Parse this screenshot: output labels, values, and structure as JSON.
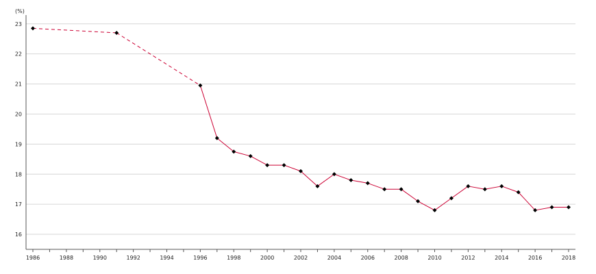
{
  "chart_data": {
    "type": "line",
    "title": "",
    "xlabel": "",
    "ylabel": "(%)",
    "xlim": [
      1986,
      2018
    ],
    "ylim": [
      15.5,
      23.2
    ],
    "x_ticks": [
      "1986",
      "1988",
      "1990",
      "1992",
      "1994",
      "1996",
      "1998",
      "2000",
      "2002",
      "2004",
      "2006",
      "2008",
      "2010",
      "2012",
      "2014",
      "2016",
      "2018"
    ],
    "y_ticks": [
      "16",
      "17",
      "18",
      "19",
      "20",
      "21",
      "22",
      "23"
    ],
    "grid": "horizontal",
    "legend": "none",
    "series": [
      {
        "color": "#cc0033",
        "marker": "diamond",
        "dashed_segments": [
          [
            1986,
            1991
          ],
          [
            1991,
            1996
          ]
        ],
        "points": [
          {
            "x": 1986,
            "y": 22.85
          },
          {
            "x": 1991,
            "y": 22.7
          },
          {
            "x": 1996,
            "y": 20.95
          },
          {
            "x": 1997,
            "y": 19.2
          },
          {
            "x": 1998,
            "y": 18.75
          },
          {
            "x": 1999,
            "y": 18.6
          },
          {
            "x": 2000,
            "y": 18.3
          },
          {
            "x": 2001,
            "y": 18.3
          },
          {
            "x": 2002,
            "y": 18.1
          },
          {
            "x": 2003,
            "y": 17.6
          },
          {
            "x": 2004,
            "y": 18.0
          },
          {
            "x": 2005,
            "y": 17.8
          },
          {
            "x": 2006,
            "y": 17.7
          },
          {
            "x": 2007,
            "y": 17.5
          },
          {
            "x": 2008,
            "y": 17.5
          },
          {
            "x": 2009,
            "y": 17.1
          },
          {
            "x": 2010,
            "y": 16.8
          },
          {
            "x": 2011,
            "y": 17.2
          },
          {
            "x": 2012,
            "y": 17.6
          },
          {
            "x": 2013,
            "y": 17.5
          },
          {
            "x": 2014,
            "y": 17.6
          },
          {
            "x": 2015,
            "y": 17.4
          },
          {
            "x": 2016,
            "y": 16.8
          },
          {
            "x": 2017,
            "y": 16.9
          },
          {
            "x": 2018,
            "y": 16.9
          }
        ]
      }
    ]
  }
}
